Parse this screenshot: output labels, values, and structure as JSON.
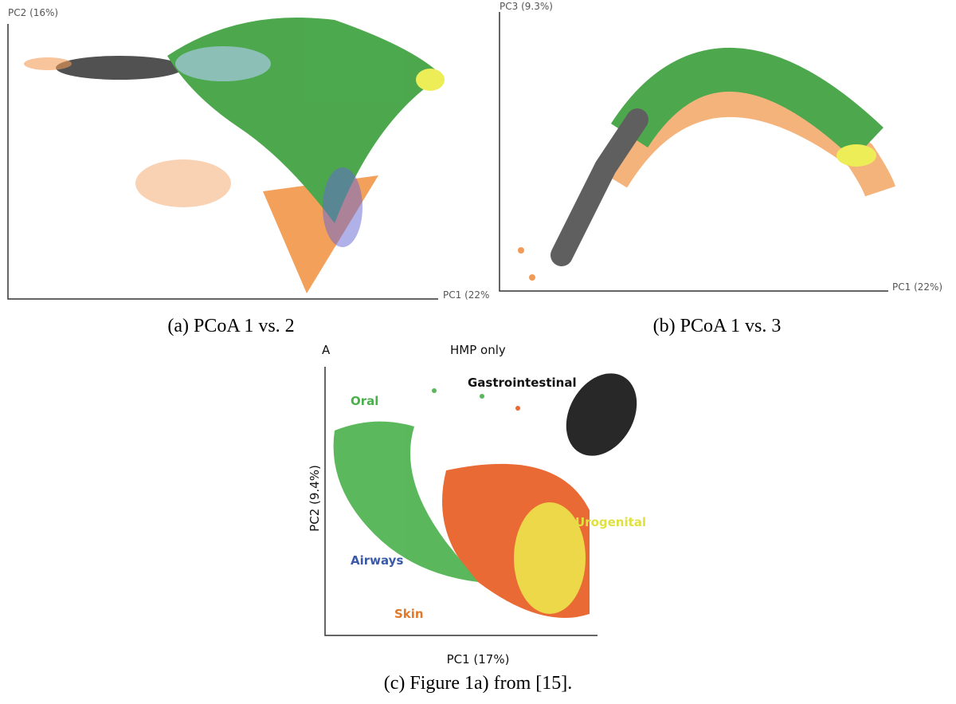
{
  "panels": [
    {
      "axis_y": "PC2 (16%)",
      "axis_x": "PC1 (22%",
      "caption": "(a) PCoA 1 vs. 2"
    },
    {
      "axis_y": "PC3 (9.3%)",
      "axis_x": "PC1 (22%)",
      "caption": "(b) PCoA 1 vs. 3"
    },
    {
      "corner": "A",
      "title": "HMP only",
      "axis_y": "PC2 (9.4%)",
      "axis_x": "PC1 (17%)",
      "labels": [
        "Oral",
        "Gastrointestinal",
        "Urogenital",
        "Airways",
        "Skin"
      ],
      "caption": "(c) Figure 1a) from [15]."
    }
  ]
}
